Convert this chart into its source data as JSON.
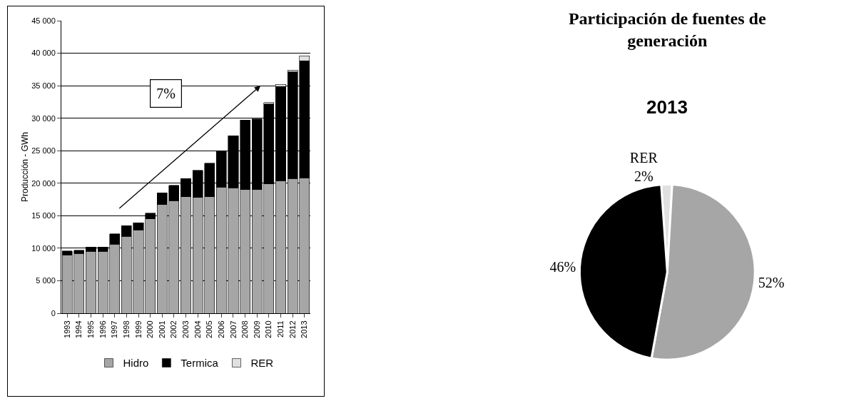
{
  "chart_data": [
    {
      "type": "bar",
      "stacked": true,
      "ylabel": "Producción - GWh",
      "categories": [
        "1993",
        "1994",
        "1995",
        "1996",
        "1997",
        "1998",
        "1999",
        "2000",
        "2001",
        "2002",
        "2003",
        "2004",
        "2005",
        "2006",
        "2007",
        "2008",
        "2009",
        "2010",
        "2011",
        "2012",
        "2013"
      ],
      "series": [
        {
          "name": "Hidro",
          "color": "#a6a6a6",
          "values": [
            9000,
            9200,
            9500,
            9500,
            10600,
            11800,
            12800,
            14500,
            16700,
            17300,
            17900,
            17800,
            17900,
            19400,
            19300,
            19000,
            19000,
            19900,
            20400,
            20700,
            20800
          ]
        },
        {
          "name": "Termica",
          "color": "#000000",
          "values": [
            600,
            500,
            700,
            700,
            1600,
            1700,
            1100,
            900,
            1800,
            2400,
            2800,
            4200,
            5200,
            5500,
            8000,
            10700,
            10900,
            12300,
            14500,
            16400,
            18000
          ]
        },
        {
          "name": "RER",
          "color": "#e0e0e0",
          "values": [
            null,
            null,
            null,
            null,
            null,
            null,
            null,
            null,
            null,
            null,
            null,
            null,
            null,
            null,
            null,
            null,
            null,
            200,
            300,
            300,
            800
          ]
        }
      ],
      "ylim": [
        0,
        45000
      ],
      "yticks": [
        0,
        {
          "value": 5000,
          "label": "5 000"
        },
        {
          "value": 10000,
          "label": "10 000"
        },
        {
          "value": 15000,
          "label": "15 000"
        },
        {
          "value": 20000,
          "label": "20 000"
        },
        {
          "value": 25000,
          "label": "25 000"
        },
        {
          "value": 30000,
          "label": "30 000"
        },
        {
          "value": 35000,
          "label": "35 000"
        },
        {
          "value": 40000,
          "label": "40 000"
        },
        {
          "value": 45000,
          "label": "45 000"
        }
      ],
      "grid": "y",
      "legend": "bottom",
      "annotations": [
        "7%"
      ]
    },
    {
      "type": "pie",
      "title": "Participación de fuentes de generación",
      "subtitle": "2013",
      "categories": [
        "RER",
        null,
        null
      ],
      "values": [
        2,
        52,
        46
      ],
      "colors": [
        "#e0e0e0",
        "#a6a6a6",
        "#000000"
      ],
      "value_labels": [
        "2%",
        "52%",
        "46%"
      ],
      "legend": false
    }
  ]
}
